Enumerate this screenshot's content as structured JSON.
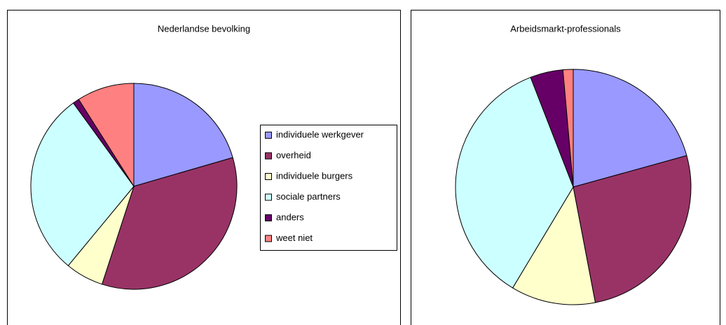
{
  "legend": {
    "labels": [
      "individuele werkgever",
      "overheid",
      "individuele burgers",
      "sociale partners",
      "anders",
      "weet niet"
    ],
    "colors": [
      "#9999ff",
      "#993366",
      "#ffffcc",
      "#ccffff",
      "#660066",
      "#ff8080"
    ]
  },
  "chart_data": [
    {
      "type": "pie",
      "title": "Nederlandse bevolking",
      "values": [
        20.5,
        34.5,
        6,
        29,
        1,
        9
      ]
    },
    {
      "type": "pie",
      "title": "Arbeidsmarkt-professionals",
      "values": [
        20.7,
        26.3,
        11.6,
        35.5,
        4.5,
        1.4
      ]
    }
  ]
}
